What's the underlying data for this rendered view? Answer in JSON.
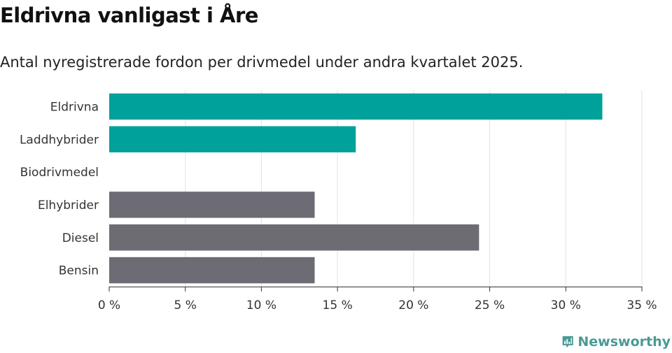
{
  "title": "Eldrivna vanligast i Åre",
  "subtitle": "Antal nyregistrerade fordon per drivmedel under andra kvartalet 2025.",
  "brand": {
    "name": "Newsworthy",
    "icon": "bar-chart-speech-bubble-icon",
    "color": "#4a9a95"
  },
  "chart_data": {
    "type": "bar",
    "orientation": "horizontal",
    "categories": [
      "Eldrivna",
      "Laddhybrider",
      "Biodrivmedel",
      "Elhybrider",
      "Diesel",
      "Bensin"
    ],
    "values": [
      32.4,
      16.2,
      0,
      13.5,
      24.3,
      13.5
    ],
    "colors": [
      "#00a19a",
      "#00a19a",
      "#00a19a",
      "#6d6c74",
      "#6d6c74",
      "#6d6c74"
    ],
    "xlim": [
      0,
      35
    ],
    "xticks": [
      0,
      5,
      10,
      15,
      20,
      25,
      30,
      35
    ],
    "xtick_labels": [
      "0 %",
      "5 %",
      "10 %",
      "15 %",
      "20 %",
      "25 %",
      "30 %",
      "35 %"
    ],
    "grid": "vertical",
    "xlabel": "",
    "ylabel": ""
  }
}
